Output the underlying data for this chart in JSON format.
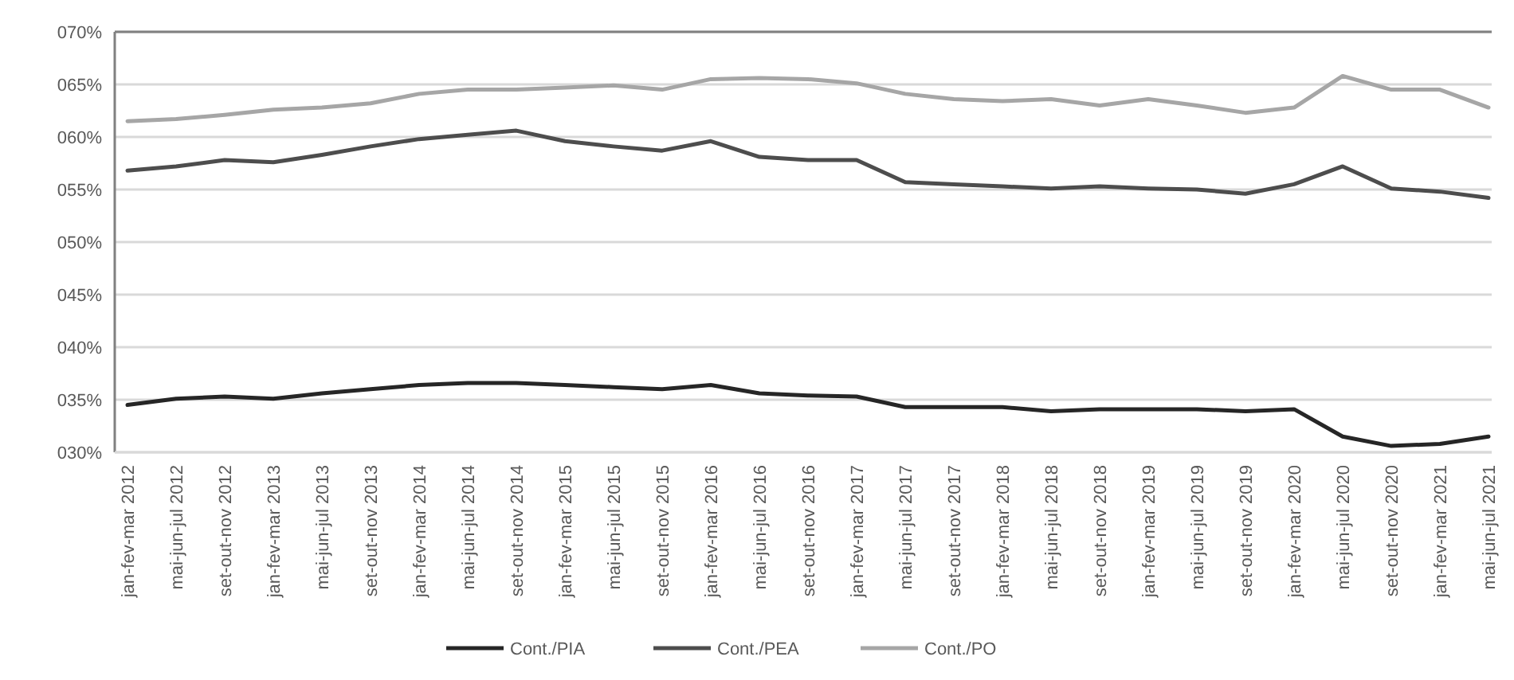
{
  "chart_data": {
    "type": "line",
    "categories": [
      "jan-fev-mar 2012",
      "mai-jun-jul 2012",
      "set-out-nov 2012",
      "jan-fev-mar 2013",
      "mai-jun-jul 2013",
      "set-out-nov 2013",
      "jan-fev-mar 2014",
      "mai-jun-jul 2014",
      "set-out-nov 2014",
      "jan-fev-mar 2015",
      "mai-jun-jul 2015",
      "set-out-nov 2015",
      "jan-fev-mar 2016",
      "mai-jun-jul 2016",
      "set-out-nov 2016",
      "jan-fev-mar 2017",
      "mai-jun-jul 2017",
      "set-out-nov 2017",
      "jan-fev-mar 2018",
      "mai-jun-jul 2018",
      "set-out-nov 2018",
      "jan-fev-mar 2019",
      "mai-jun-jul 2019",
      "set-out-nov 2019",
      "jan-fev-mar 2020",
      "mai-jun-jul 2020",
      "set-out-nov 2020",
      "jan-fev-mar 2021",
      "mai-jun-jul 2021"
    ],
    "series": [
      {
        "name": "Cont./PIA",
        "color": "#262626",
        "values": [
          34.5,
          35.1,
          35.3,
          35.1,
          35.6,
          36.0,
          36.4,
          36.6,
          36.6,
          36.4,
          36.2,
          36.0,
          36.4,
          35.6,
          35.4,
          35.3,
          34.3,
          34.3,
          34.3,
          33.9,
          34.1,
          34.1,
          34.1,
          33.9,
          34.1,
          31.5,
          30.6,
          30.8,
          31.5
        ]
      },
      {
        "name": "Cont./PEA",
        "color": "#4d4d4d",
        "values": [
          56.8,
          57.2,
          57.8,
          57.6,
          58.3,
          59.1,
          59.8,
          60.2,
          60.6,
          59.6,
          59.1,
          58.7,
          59.6,
          58.1,
          57.8,
          57.8,
          55.7,
          55.5,
          55.3,
          55.1,
          55.3,
          55.1,
          55.0,
          54.6,
          55.5,
          57.2,
          55.1,
          54.8,
          54.2
        ]
      },
      {
        "name": "Cont./PO",
        "color": "#a6a6a6",
        "values": [
          61.5,
          61.7,
          62.1,
          62.6,
          62.8,
          63.2,
          64.1,
          64.5,
          64.5,
          64.7,
          64.9,
          64.5,
          65.5,
          65.6,
          65.5,
          65.1,
          64.1,
          63.6,
          63.4,
          63.6,
          63.0,
          63.6,
          63.0,
          62.3,
          62.8,
          65.8,
          64.5,
          64.5,
          62.8
        ]
      }
    ],
    "ylim": [
      30,
      70
    ],
    "yticks": [
      {
        "value": 30,
        "label": "030%"
      },
      {
        "value": 35,
        "label": "035%"
      },
      {
        "value": 40,
        "label": "040%"
      },
      {
        "value": 45,
        "label": "045%"
      },
      {
        "value": 50,
        "label": "050%"
      },
      {
        "value": 55,
        "label": "055%"
      },
      {
        "value": 60,
        "label": "060%"
      },
      {
        "value": 65,
        "label": "065%"
      },
      {
        "value": 70,
        "label": "070%"
      }
    ],
    "grid": "y",
    "legend": "bottom",
    "marker": "none",
    "line_style": "solid"
  }
}
